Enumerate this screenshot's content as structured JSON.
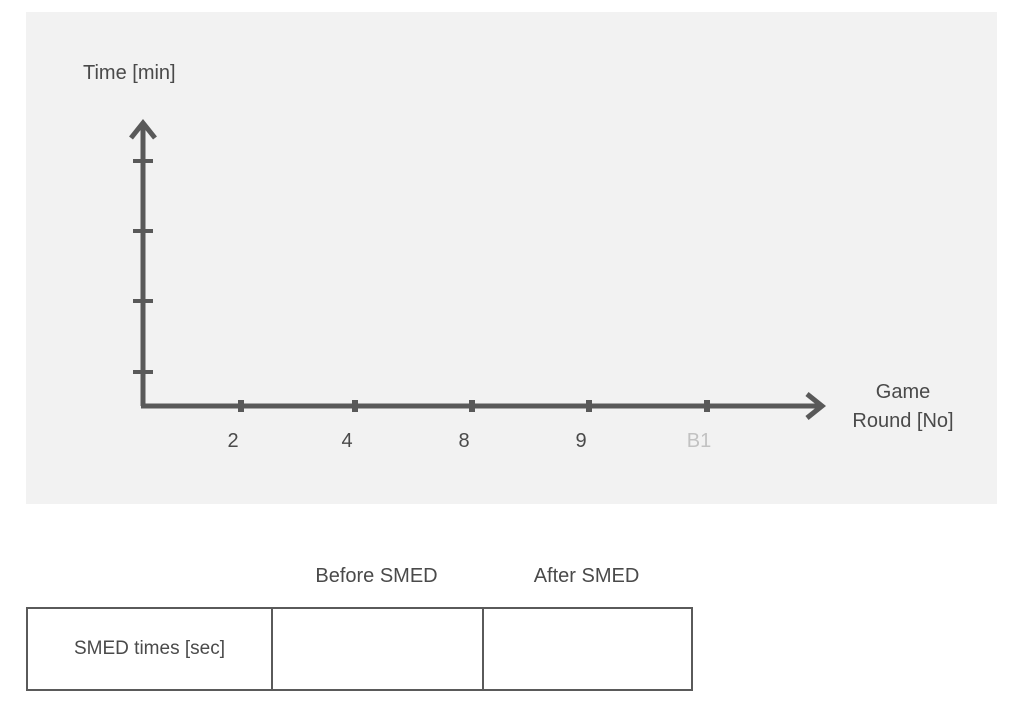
{
  "chart_data": {
    "type": "line",
    "title": "",
    "ylabel": "Time [min]",
    "xlabel": "Game Round [No]",
    "xlabel_lines": [
      "Game",
      "Round [No]"
    ],
    "categories": [
      "2",
      "4",
      "8",
      "9",
      "B1"
    ],
    "muted_categories": [
      "B1"
    ],
    "y_tick_count": 4,
    "series": [],
    "grid": false,
    "axis_color": "#595959",
    "panel_color": "#f2f2f2",
    "muted_label_color": "#c2c2c2"
  },
  "table": {
    "headers": [
      "",
      "Before SMED",
      "After SMED"
    ],
    "rows": [
      [
        "SMED times [sec]",
        "",
        ""
      ]
    ]
  }
}
